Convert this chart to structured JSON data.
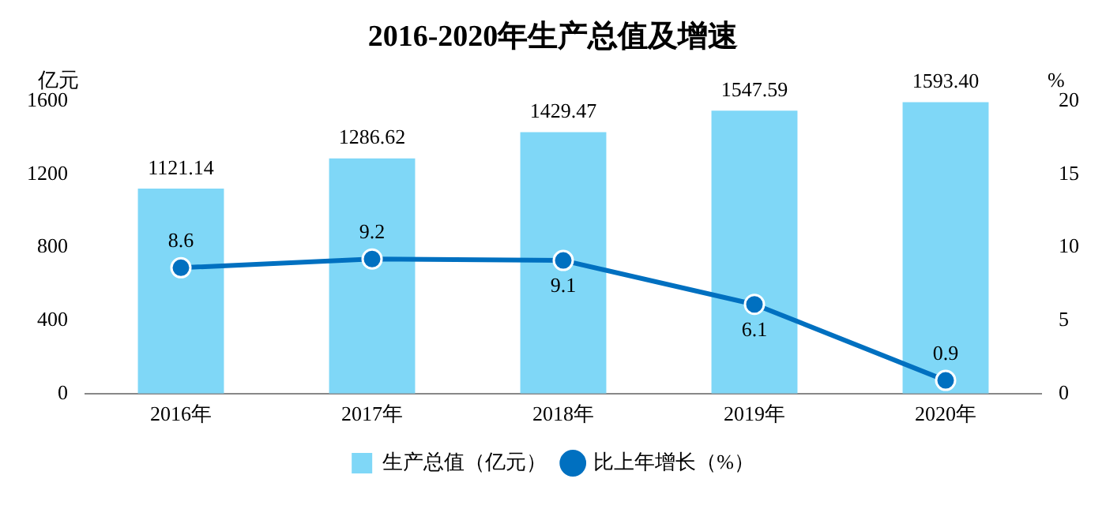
{
  "chart_data": {
    "type": "bar",
    "title": "2016-2020年生产总值及增速",
    "categories": [
      "2016年",
      "2017年",
      "2018年",
      "2019年",
      "2020年"
    ],
    "series": [
      {
        "name": "生产总值（亿元）",
        "color": "#7fd7f7",
        "values": [
          1121.14,
          1286.62,
          1429.47,
          1547.59,
          1593.4
        ],
        "value_labels": [
          "1121.14",
          "1286.62",
          "1429.47",
          "1547.59",
          "1593.40"
        ]
      },
      {
        "name": "比上年增长（%）",
        "type": "line",
        "axis": "y2",
        "color": "#0070c0",
        "values": [
          8.6,
          9.2,
          9.1,
          6.1,
          0.9
        ],
        "value_labels": [
          "8.6",
          "9.2",
          "9.1",
          "6.1",
          "0.9"
        ]
      }
    ],
    "ylabel": "亿元",
    "y2label": "%",
    "ylim": [
      0,
      1600
    ],
    "yticks": [
      0,
      400,
      800,
      1200,
      1600
    ],
    "y2lim": [
      0,
      20
    ],
    "y2ticks": [
      0,
      5,
      10,
      15,
      20
    ],
    "grid": false,
    "legend": "bottom",
    "marker": "circle",
    "line_style": "solid"
  }
}
